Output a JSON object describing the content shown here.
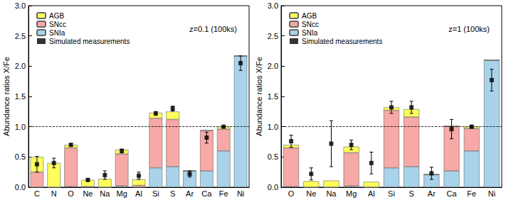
{
  "chart_data": [
    {
      "type": "bar",
      "stacked": true,
      "legend": "top-left",
      "grid": false,
      "subtitle": "z=0.1 (100ks)",
      "y_label": "Abundance ratios X/Fe",
      "categories": [
        "C",
        "N",
        "O",
        "Ne",
        "Na",
        "Mg",
        "Al",
        "Si",
        "S",
        "Ar",
        "Ca",
        "Fe",
        "Ni"
      ],
      "ylim": [
        0,
        3
      ],
      "yticks": [
        {
          "value": 0,
          "label": "0.0"
        },
        {
          "value": 0.5,
          "label": "0.5"
        },
        {
          "value": 1,
          "label": "1.0"
        },
        {
          "value": 1.5,
          "label": "1.5"
        },
        {
          "value": 2,
          "label": "2.0"
        },
        {
          "value": 2.5,
          "label": "2.5"
        },
        {
          "value": 3,
          "label": "3.0"
        }
      ],
      "reference_line": 1,
      "series": [
        {
          "name": "AGB",
          "color": "#ffff5c",
          "values": [
            0.25,
            0.4,
            0.05,
            0.11,
            0.14,
            0.07,
            0.1,
            0.09,
            0.13,
            0,
            0,
            0.04,
            0
          ]
        },
        {
          "name": "SNcc",
          "color": "#f6a9a6",
          "values": [
            0.25,
            0,
            0.64,
            0.01,
            0,
            0.53,
            0.03,
            0.82,
            0.78,
            0,
            0.67,
            0.36,
            0
          ]
        },
        {
          "name": "SNIa",
          "color": "#a9d3ea",
          "values": [
            0,
            0,
            0.01,
            0,
            0,
            0.02,
            0,
            0.32,
            0.34,
            0.27,
            0.27,
            0.6,
            2.17
          ]
        },
        {
          "name": "Simulated measurements",
          "type": "scatter",
          "marker": "square",
          "color": "#000000",
          "values": [
            0.38,
            0.4,
            0.7,
            0.12,
            0.2,
            0.6,
            0.19,
            1.22,
            1.3,
            0.22,
            0.82,
            1.0,
            2.05
          ],
          "errors": [
            0.13,
            0.08,
            0.02,
            0.02,
            0.07,
            0.03,
            0.06,
            0.03,
            0.04,
            0.05,
            0.09,
            0.01,
            0.12
          ]
        }
      ]
    },
    {
      "type": "bar",
      "stacked": true,
      "legend": "top-left",
      "grid": false,
      "subtitle": "z=1 (100ks)",
      "y_label": "Abundance ratios X/Fe",
      "categories": [
        "O",
        "Ne",
        "Na",
        "Mg",
        "Al",
        "Si",
        "S",
        "Ar",
        "Ca",
        "Fe",
        "Ni"
      ],
      "ylim": [
        0,
        3
      ],
      "yticks": [
        {
          "value": 0,
          "label": "0.0"
        },
        {
          "value": 0.5,
          "label": "0.5"
        },
        {
          "value": 1,
          "label": "1.0"
        },
        {
          "value": 1.5,
          "label": "1.5"
        },
        {
          "value": 2,
          "label": "2.0"
        },
        {
          "value": 2.5,
          "label": "2.5"
        },
        {
          "value": 3,
          "label": "3.0"
        }
      ],
      "reference_line": 1,
      "series": [
        {
          "name": "AGB",
          "color": "#ffff5c",
          "values": [
            0.05,
            0.1,
            0.11,
            0.1,
            0.09,
            0.05,
            0.13,
            0,
            0,
            0.03,
            0
          ]
        },
        {
          "name": "SNcc",
          "color": "#f6a9a6",
          "values": [
            0.64,
            0,
            0,
            0.55,
            0,
            0.95,
            0.82,
            0,
            0.74,
            0.37,
            0
          ]
        },
        {
          "name": "SNIa",
          "color": "#a9d3ea",
          "values": [
            0.01,
            0,
            0,
            0.02,
            0,
            0.32,
            0.34,
            0.21,
            0.27,
            0.6,
            2.1
          ]
        },
        {
          "name": "Simulated measurements",
          "type": "scatter",
          "marker": "square",
          "color": "#000000",
          "values": [
            0.76,
            0.22,
            0.72,
            0.7,
            0.4,
            1.32,
            1.32,
            0.23,
            0.96,
            1.0,
            1.77
          ],
          "errors": [
            0.1,
            0.1,
            0.38,
            0.08,
            0.18,
            0.1,
            0.1,
            0.1,
            0.16,
            0.02,
            0.18
          ]
        }
      ]
    }
  ]
}
